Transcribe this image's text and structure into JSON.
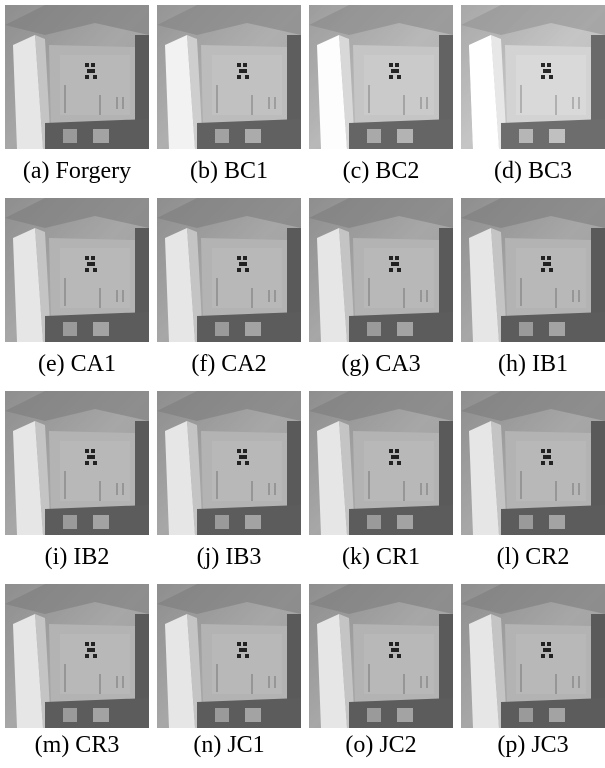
{
  "figure": {
    "captions": [
      "(a) Forgery",
      "(b) BC1",
      "(c) BC2",
      "(d) BC3",
      "(e) CA1",
      "(f) CA2",
      "(g) CA3",
      "(h) IB1",
      "(i) IB2",
      "(j) IB3",
      "(k) CR1",
      "(l) CR2",
      "(m) CR3",
      "(n) JC1",
      "(o) JC2",
      "(p) JC3"
    ]
  }
}
